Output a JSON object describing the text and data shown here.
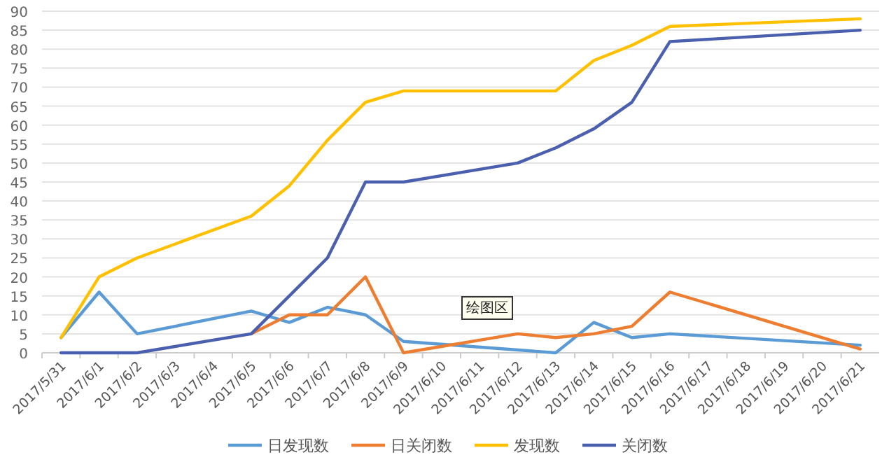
{
  "chart_data": {
    "type": "line",
    "categories": [
      "2017/5/31",
      "2017/6/1",
      "2017/6/2",
      "2017/6/3",
      "2017/6/4",
      "2017/6/5",
      "2017/6/6",
      "2017/6/7",
      "2017/6/8",
      "2017/6/9",
      "2017/6/10",
      "2017/6/11",
      "2017/6/12",
      "2017/6/13",
      "2017/6/14",
      "2017/6/15",
      "2017/6/16",
      "2017/6/17",
      "2017/6/18",
      "2017/6/19",
      "2017/6/20",
      "2017/6/21"
    ],
    "series": [
      {
        "name": "日发现数",
        "color": "#5b9bd5",
        "x": [
          "2017/5/31",
          "2017/6/1",
          "2017/6/2",
          "2017/6/5",
          "2017/6/6",
          "2017/6/7",
          "2017/6/8",
          "2017/6/9",
          "2017/6/13",
          "2017/6/14",
          "2017/6/15",
          "2017/6/16",
          "2017/6/21"
        ],
        "values": [
          4,
          16,
          5,
          11,
          8,
          12,
          10,
          3,
          0,
          8,
          4,
          5,
          2
        ]
      },
      {
        "name": "日关闭数",
        "color": "#ed7d31",
        "x": [
          "2017/6/5",
          "2017/6/6",
          "2017/6/7",
          "2017/6/8",
          "2017/6/9",
          "2017/6/12",
          "2017/6/13",
          "2017/6/14",
          "2017/6/15",
          "2017/6/16",
          "2017/6/21"
        ],
        "values": [
          5,
          10,
          10,
          20,
          0,
          5,
          4,
          5,
          7,
          16,
          1
        ]
      },
      {
        "name": "发现数",
        "color": "#ffc000",
        "x": [
          "2017/5/31",
          "2017/6/1",
          "2017/6/2",
          "2017/6/5",
          "2017/6/6",
          "2017/6/7",
          "2017/6/8",
          "2017/6/9",
          "2017/6/13",
          "2017/6/14",
          "2017/6/15",
          "2017/6/16",
          "2017/6/21"
        ],
        "values": [
          4,
          20,
          25,
          36,
          44,
          56,
          66,
          69,
          69,
          77,
          81,
          86,
          88
        ]
      },
      {
        "name": "关闭数",
        "color": "#4a5fae",
        "x": [
          "2017/5/31",
          "2017/6/2",
          "2017/6/5",
          "2017/6/7",
          "2017/6/8",
          "2017/6/9",
          "2017/6/12",
          "2017/6/13",
          "2017/6/14",
          "2017/6/15",
          "2017/6/16",
          "2017/6/21"
        ],
        "values": [
          0,
          0,
          5,
          25,
          45,
          45,
          50,
          54,
          59,
          66,
          82,
          85
        ]
      }
    ],
    "ylim": [
      0,
      90
    ],
    "yticks": [
      0,
      5,
      10,
      15,
      20,
      25,
      30,
      35,
      40,
      45,
      50,
      55,
      60,
      65,
      70,
      75,
      80,
      85,
      90
    ],
    "grid": "y",
    "legend": "bottom",
    "marker": "none",
    "line_style": "solid",
    "annotations": [
      "绘图区"
    ]
  }
}
